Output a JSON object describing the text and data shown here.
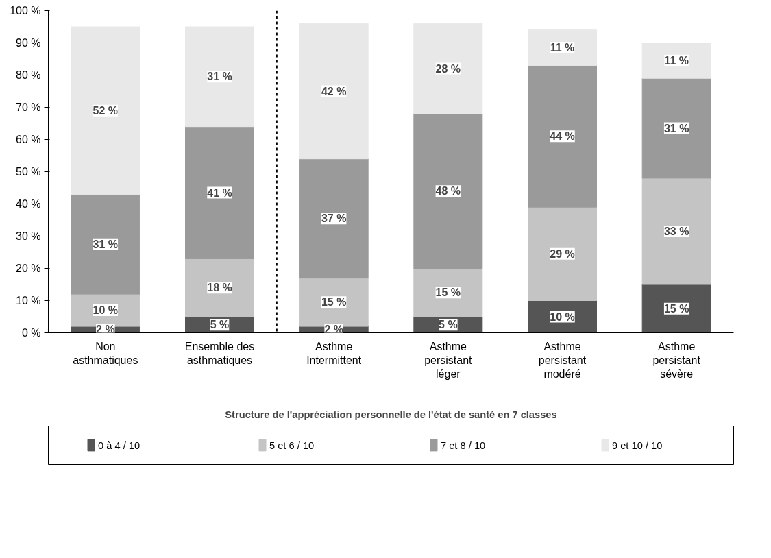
{
  "chart_data": {
    "type": "bar",
    "stacked": true,
    "xlabel": "Structure de l'appréciation personnelle de l'état de santé en 7 classes",
    "categories": [
      "Non asthmatiques",
      "Ensemble des asthmatiques",
      "Asthme Intermittent",
      "Asthme persistant léger",
      "Asthme persistant modéré",
      "Asthme persistant sévère"
    ],
    "series": [
      {
        "name": "0 à 4 / 10",
        "color": "#555555",
        "values": [
          2,
          5,
          2,
          5,
          10,
          15
        ],
        "value_labels": [
          "2 %",
          "5 %",
          "2 %",
          "5 %",
          "10 %",
          "15 %"
        ]
      },
      {
        "name": "5 et 6 / 10",
        "color": "#c4c4c4",
        "values": [
          10,
          18,
          15,
          15,
          29,
          33
        ],
        "value_labels": [
          "10 %",
          "18 %",
          "15 %",
          "15 %",
          "29 %",
          "33 %"
        ]
      },
      {
        "name": "7 et 8 / 10",
        "color": "#9a9a9a",
        "values": [
          31,
          41,
          37,
          48,
          44,
          31
        ],
        "value_labels": [
          "31 %",
          "41 %",
          "37 %",
          "48 %",
          "44 %",
          "31 %"
        ]
      },
      {
        "name": "9 et 10 / 10",
        "color": "#e8e8e8",
        "values": [
          52,
          31,
          42,
          28,
          11,
          11
        ],
        "value_labels": [
          "52 %",
          "31 %",
          "42 %",
          "28 %",
          "11 %",
          "11 %"
        ]
      }
    ],
    "ylim": [
      0,
      100
    ],
    "yticks": [
      {
        "value": 0,
        "label": "0 %"
      },
      {
        "value": 10,
        "label": "10 %"
      },
      {
        "value": 20,
        "label": "20 %"
      },
      {
        "value": 30,
        "label": "30 %"
      },
      {
        "value": 40,
        "label": "40 %"
      },
      {
        "value": 50,
        "label": "50 %"
      },
      {
        "value": 60,
        "label": "60 %"
      },
      {
        "value": 70,
        "label": "70 %"
      },
      {
        "value": 80,
        "label": "80 %"
      },
      {
        "value": 90,
        "label": "90 %"
      },
      {
        "value": 100,
        "label": "100 %"
      }
    ],
    "grid": false,
    "legend": "bottom"
  }
}
